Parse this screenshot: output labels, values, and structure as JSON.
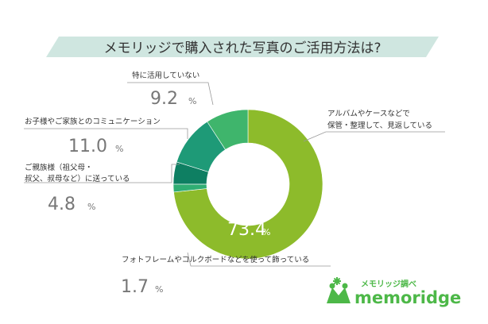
{
  "chart_data": {
    "type": "pie",
    "title": "メモリッジで購入された写真のご活用方法は?",
    "slices": [
      {
        "label": "アルバムやケースなどで保管・整理して、見返している",
        "label_lines": [
          "アルバムやケースなどで",
          "保管・整理して、見返している"
        ],
        "value": 73.4,
        "value_text": "73.4",
        "color": "#8dbb2b"
      },
      {
        "label": "フォトフレームやコルクボードなどを使って飾っている",
        "label_lines": [
          "フォトフレームやコルクボードなどを使って飾っている"
        ],
        "value": 1.7,
        "value_text": "1.7",
        "color": "#2fae73"
      },
      {
        "label": "ご親族様（祖父母・叔父、叔母など）に送っている",
        "label_lines": [
          "ご親族様（祖父母・",
          "叔父、叔母など）に送っている"
        ],
        "value": 4.8,
        "value_text": "4.8",
        "color": "#0e7f62"
      },
      {
        "label": "お子様やご家族とのコミュニケーション",
        "label_lines": [
          "お子様やご家族とのコミュニケーション"
        ],
        "value": 11.0,
        "value_text": "11.0",
        "color": "#1e9a77"
      },
      {
        "label": "特に活用していない",
        "label_lines": [
          "特に活用していない"
        ],
        "value": 9.2,
        "value_text": "9.2",
        "color": "#3fb56c"
      }
    ],
    "unit": "%",
    "start": "top",
    "direction": "clockwise"
  },
  "brand": {
    "tagline": "メモリッジ調べ",
    "name": "memoridge",
    "color": "#4db848"
  },
  "colors": {
    "banner": "#cfe6e0",
    "text_gray": "#777777",
    "leader": "#999999"
  }
}
